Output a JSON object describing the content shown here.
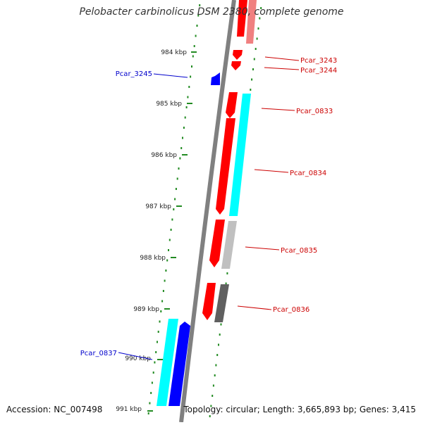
{
  "title": "Pelobacter carbinolicus DSM 2380, complete genome",
  "accession": "Accession: NC_007498",
  "topology": "Topology: circular; Length: 3,665,893 bp; Genes: 3,415",
  "ticks": [
    {
      "label": "984 kbp"
    },
    {
      "label": "985 kbp"
    },
    {
      "label": "986 kbp"
    },
    {
      "label": "987 kbp"
    },
    {
      "label": "988 kbp"
    },
    {
      "label": "989 kbp"
    },
    {
      "label": "990 kbp"
    },
    {
      "label": "991 kbp"
    }
  ],
  "gene_labels": [
    {
      "text": "Pcar_3243",
      "color": "#cc0000"
    },
    {
      "text": "Pcar_3244",
      "color": "#cc0000"
    },
    {
      "text": "Pcar_3245",
      "color": "#0000cc"
    },
    {
      "text": "Pcar_0833",
      "color": "#cc0000"
    },
    {
      "text": "Pcar_0834",
      "color": "#cc0000"
    },
    {
      "text": "Pcar_0835",
      "color": "#cc0000"
    },
    {
      "text": "Pcar_0836",
      "color": "#cc0000"
    },
    {
      "text": "Pcar_0837",
      "color": "#0000cc"
    }
  ],
  "colors": {
    "backbone": "#808080",
    "tick": "#228b22",
    "forward_gene": "#ff0000",
    "reverse_gene": "#0000ff",
    "cog_cyan": "#00ffff",
    "cog_light_gray": "#c0c0c0",
    "cog_dark_gray": "#606060",
    "cog_pink": "#f08080"
  }
}
